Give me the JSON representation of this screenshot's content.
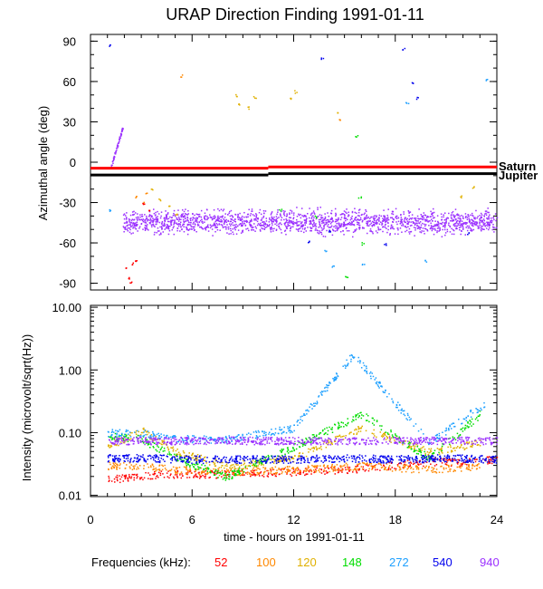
{
  "chart_data": [
    {
      "type": "scatter",
      "title": "URAP Direction Finding  1991-01-11",
      "ylabel": "Azimuthal angle (deg)",
      "ylim": [
        -95,
        95
      ],
      "yticks": [
        -90,
        -60,
        -30,
        0,
        30,
        60,
        90
      ],
      "xlim": [
        0,
        24
      ],
      "grid": false,
      "reference_lines": [
        {
          "name": "Saturn",
          "color": "#ff0000",
          "segments": [
            {
              "x": [
                0,
                10.5
              ],
              "y": -4.5
            },
            {
              "x": [
                10.5,
                24
              ],
              "y": -3.5
            }
          ]
        },
        {
          "name": "Jupiter",
          "color": "#000000",
          "segments": [
            {
              "x": [
                0,
                10.5
              ],
              "y": -9.5
            },
            {
              "x": [
                10.5,
                24
              ],
              "y": -8.5
            }
          ]
        }
      ],
      "series": [
        {
          "name": "940",
          "color": "#9b30ff",
          "description_values": {
            "band_center": -44,
            "band_spread": 6,
            "x_range": [
              1.9,
              24
            ],
            "ramp": {
              "x": [
                1.2,
                1.9
              ],
              "y": [
                -3,
                27
              ]
            }
          }
        },
        {
          "name": "120",
          "color": "#e0b000",
          "points": [
            [
              8.5,
              50
            ],
            [
              8.7,
              44
            ],
            [
              9.2,
              41
            ],
            [
              9.6,
              49
            ],
            [
              11.7,
              48
            ],
            [
              12.0,
              53
            ],
            [
              14.5,
              38
            ],
            [
              3.5,
              -20
            ],
            [
              4.0,
              -27
            ],
            [
              4.5,
              -32
            ],
            [
              5.0,
              -38
            ],
            [
              21.8,
              -25
            ],
            [
              22.5,
              -18
            ]
          ]
        },
        {
          "name": "100",
          "color": "#ff8800",
          "points": [
            [
              2.6,
              -25
            ],
            [
              3.0,
              -30
            ],
            [
              3.2,
              -22
            ],
            [
              5.3,
              65
            ],
            [
              14.6,
              32
            ]
          ]
        },
        {
          "name": "52",
          "color": "#ff0000",
          "points": [
            [
              2.0,
              -78
            ],
            [
              2.1,
              -85
            ],
            [
              2.3,
              -88
            ],
            [
              2.4,
              -75
            ],
            [
              2.6,
              -72
            ],
            [
              3.0,
              -30
            ],
            [
              3.3,
              -35
            ]
          ]
        },
        {
          "name": "148",
          "color": "#00dd00",
          "points": [
            [
              11.1,
              -35
            ],
            [
              13.2,
              -40
            ],
            [
              15.8,
              -25
            ],
            [
              16.0,
              -60
            ],
            [
              15.6,
              20
            ],
            [
              15.0,
              -85
            ]
          ]
        },
        {
          "name": "272",
          "color": "#1ea0ff",
          "points": [
            [
              1.0,
              -35
            ],
            [
              13.8,
              -65
            ],
            [
              14.2,
              -77
            ],
            [
              16.0,
              -75
            ],
            [
              19.7,
              -73
            ],
            [
              18.6,
              45
            ],
            [
              23.3,
              62
            ]
          ]
        },
        {
          "name": "540",
          "color": "#0000ee",
          "points": [
            [
              1.0,
              88
            ],
            [
              13.6,
              78
            ],
            [
              18.4,
              85
            ],
            [
              18.9,
              60
            ],
            [
              19.2,
              48
            ],
            [
              12.8,
              -58
            ],
            [
              14.0,
              -50
            ],
            [
              17.3,
              -60
            ],
            [
              22.2,
              -52
            ]
          ]
        }
      ]
    },
    {
      "type": "scatter",
      "ylabel": "Intensity (microvolt/sqrt(Hz))",
      "xlabel": "time - hours on 1991-01-11",
      "yscale": "log",
      "ylim": [
        0.01,
        10
      ],
      "yticks": [
        0.01,
        0.1,
        1.0,
        10.0
      ],
      "ytick_labels": [
        "0.01",
        "0.10",
        "1.00",
        "10.00"
      ],
      "xlim": [
        0,
        24
      ],
      "xticks": [
        0,
        6,
        12,
        18,
        24
      ],
      "grid": false,
      "series": [
        {
          "name": "52",
          "color": "#ff0000",
          "values": {
            "x": [
              1,
              4,
              8,
              12,
              16,
              18,
              20,
              22,
              24
            ],
            "y": [
              0.018,
              0.022,
              0.022,
              0.024,
              0.027,
              0.031,
              0.035,
              0.034,
              0.038
            ]
          }
        },
        {
          "name": "100",
          "color": "#ff8800",
          "values": {
            "x": [
              1,
              3,
              5,
              8,
              12,
              16,
              20,
              23
            ],
            "y": [
              0.03,
              0.03,
              0.026,
              0.024,
              0.026,
              0.03,
              0.026,
              0.03
            ]
          }
        },
        {
          "name": "120",
          "color": "#e0b000",
          "values": {
            "x": [
              1,
              3,
              5,
              8,
              12,
              16,
              20,
              23
            ],
            "y": [
              0.06,
              0.11,
              0.05,
              0.03,
              0.04,
              0.12,
              0.05,
              0.07
            ]
          }
        },
        {
          "name": "148",
          "color": "#00dd00",
          "values": {
            "x": [
              1,
              3,
              5,
              8,
              12,
              16,
              20,
              23
            ],
            "y": [
              0.09,
              0.08,
              0.04,
              0.02,
              0.06,
              0.2,
              0.04,
              0.2
            ]
          }
        },
        {
          "name": "272",
          "color": "#1ea0ff",
          "values": {
            "x": [
              1,
              3,
              5,
              8,
              12,
              15.5,
              20,
              23.3
            ],
            "y": [
              0.1,
              0.1,
              0.08,
              0.08,
              0.12,
              1.8,
              0.07,
              0.3
            ]
          }
        },
        {
          "name": "540",
          "color": "#0000ee",
          "values": {
            "x": [
              1,
              3,
              6,
              9,
              12,
              15,
              18,
              21,
              24
            ],
            "y": [
              0.04,
              0.04,
              0.038,
              0.038,
              0.038,
              0.04,
              0.038,
              0.04,
              0.038
            ]
          }
        },
        {
          "name": "940",
          "color": "#9b30ff",
          "values": {
            "x": [
              1,
              4,
              8,
              12,
              16,
              20,
              24
            ],
            "y": [
              0.075,
              0.075,
              0.076,
              0.075,
              0.075,
              0.076,
              0.075
            ]
          }
        }
      ]
    }
  ],
  "legend": {
    "label": "Frequencies (kHz):",
    "items": [
      {
        "text": "52",
        "color": "#ff0000"
      },
      {
        "text": "100",
        "color": "#ff8800"
      },
      {
        "text": "120",
        "color": "#e0b000"
      },
      {
        "text": "148",
        "color": "#00dd00"
      },
      {
        "text": "272",
        "color": "#1ea0ff"
      },
      {
        "text": "540",
        "color": "#0000ee"
      },
      {
        "text": "940",
        "color": "#9b30ff"
      }
    ]
  },
  "labels": {
    "saturn": "Saturn",
    "jupiter": "Jupiter"
  }
}
